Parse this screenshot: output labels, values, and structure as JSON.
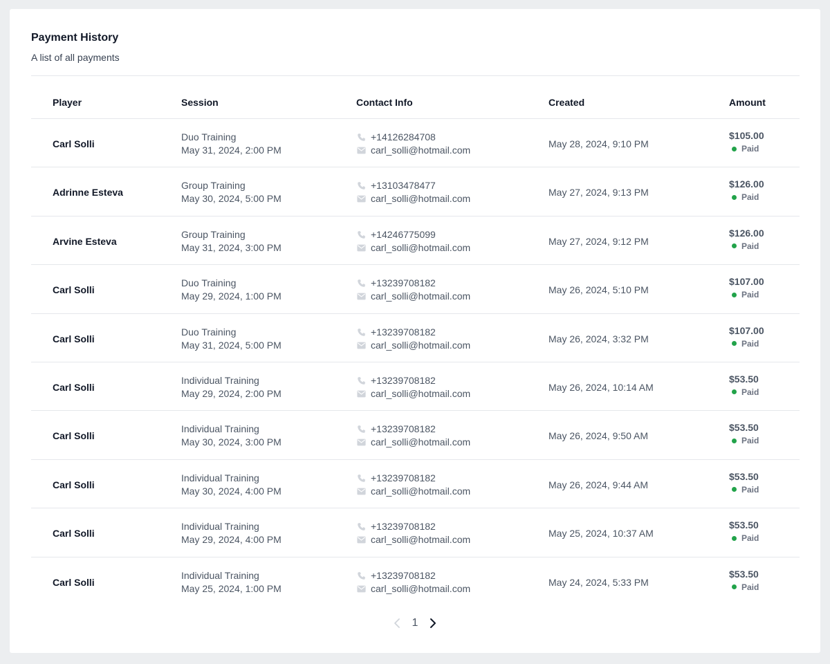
{
  "header": {
    "title": "Payment History",
    "subtitle": "A list of all payments"
  },
  "columns": {
    "player": "Player",
    "session": "Session",
    "contact": "Contact Info",
    "created": "Created",
    "amount": "Amount"
  },
  "rows": [
    {
      "player": "Carl Solli",
      "session_type": "Duo Training",
      "session_time": "May 31, 2024, 2:00 PM",
      "phone": "+14126284708",
      "email": "carl_solli@hotmail.com",
      "created": "May 28, 2024, 9:10 PM",
      "amount": "$105.00",
      "status": "Paid"
    },
    {
      "player": "Adrinne Esteva",
      "session_type": "Group Training",
      "session_time": "May 30, 2024, 5:00 PM",
      "phone": "+13103478477",
      "email": "carl_solli@hotmail.com",
      "created": "May 27, 2024, 9:13 PM",
      "amount": "$126.00",
      "status": "Paid"
    },
    {
      "player": "Arvine Esteva",
      "session_type": "Group Training",
      "session_time": "May 31, 2024, 3:00 PM",
      "phone": "+14246775099",
      "email": "carl_solli@hotmail.com",
      "created": "May 27, 2024, 9:12 PM",
      "amount": "$126.00",
      "status": "Paid"
    },
    {
      "player": "Carl Solli",
      "session_type": "Duo Training",
      "session_time": "May 29, 2024, 1:00 PM",
      "phone": "+13239708182",
      "email": "carl_solli@hotmail.com",
      "created": "May 26, 2024, 5:10 PM",
      "amount": "$107.00",
      "status": "Paid"
    },
    {
      "player": "Carl Solli",
      "session_type": "Duo Training",
      "session_time": "May 31, 2024, 5:00 PM",
      "phone": "+13239708182",
      "email": "carl_solli@hotmail.com",
      "created": "May 26, 2024, 3:32 PM",
      "amount": "$107.00",
      "status": "Paid"
    },
    {
      "player": "Carl Solli",
      "session_type": "Individual Training",
      "session_time": "May 29, 2024, 2:00 PM",
      "phone": "+13239708182",
      "email": "carl_solli@hotmail.com",
      "created": "May 26, 2024, 10:14 AM",
      "amount": "$53.50",
      "status": "Paid"
    },
    {
      "player": "Carl Solli",
      "session_type": "Individual Training",
      "session_time": "May 30, 2024, 3:00 PM",
      "phone": "+13239708182",
      "email": "carl_solli@hotmail.com",
      "created": "May 26, 2024, 9:50 AM",
      "amount": "$53.50",
      "status": "Paid"
    },
    {
      "player": "Carl Solli",
      "session_type": "Individual Training",
      "session_time": "May 30, 2024, 4:00 PM",
      "phone": "+13239708182",
      "email": "carl_solli@hotmail.com",
      "created": "May 26, 2024, 9:44 AM",
      "amount": "$53.50",
      "status": "Paid"
    },
    {
      "player": "Carl Solli",
      "session_type": "Individual Training",
      "session_time": "May 29, 2024, 4:00 PM",
      "phone": "+13239708182",
      "email": "carl_solli@hotmail.com",
      "created": "May 25, 2024, 10:37 AM",
      "amount": "$53.50",
      "status": "Paid"
    },
    {
      "player": "Carl Solli",
      "session_type": "Individual Training",
      "session_time": "May 25, 2024, 1:00 PM",
      "phone": "+13239708182",
      "email": "carl_solli@hotmail.com",
      "created": "May 24, 2024, 5:33 PM",
      "amount": "$53.50",
      "status": "Paid"
    }
  ],
  "pagination": {
    "current_page": "1",
    "prev_icon": "chevron-left-icon",
    "next_icon": "chevron-right-icon"
  },
  "icons": {
    "phone": "phone-icon",
    "email": "mail-icon"
  },
  "colors": {
    "status_paid": "#22a34a",
    "background": "#eceef0",
    "card": "#ffffff"
  }
}
